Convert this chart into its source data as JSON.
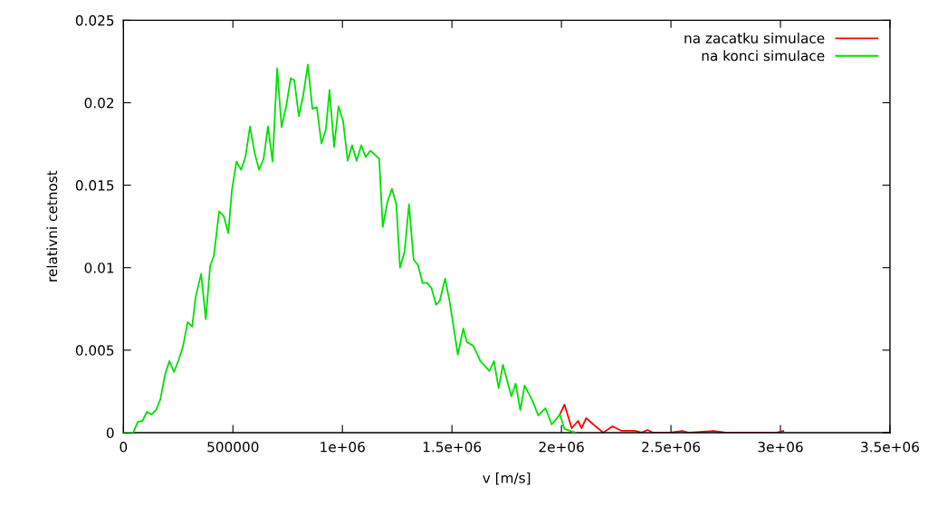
{
  "chart_data": {
    "type": "line",
    "xlabel": "v [m/s]",
    "ylabel": "relativni cetnost",
    "xlim": [
      0,
      3500000
    ],
    "ylim": [
      0,
      0.025
    ],
    "xticks": [
      0,
      500000,
      {
        "value": 1000000,
        "label": "1e+06"
      },
      {
        "value": 1500000,
        "label": "1.5e+06"
      },
      {
        "value": 2000000,
        "label": "2e+06"
      },
      {
        "value": 2500000,
        "label": "2.5e+06"
      },
      {
        "value": 3000000,
        "label": "3e+06"
      },
      {
        "value": 3500000,
        "label": "3.5e+06"
      }
    ],
    "yticks": [
      0,
      0.005,
      0.01,
      0.015,
      0.02,
      0.025
    ],
    "grid": false,
    "legend": "top right",
    "marker": "none",
    "line_style": "solid",
    "series": [
      {
        "name": "na zacatku simulace",
        "color": "#ff0000",
        "x": [
          1993000,
          2014000,
          2047000,
          2076000,
          2092000,
          2113000,
          2146000,
          2191000,
          2233000,
          2274000,
          2336000,
          2365000,
          2394000,
          2418000,
          2497000,
          2551000,
          2579000,
          2695000,
          2749000,
          2984000,
          3013000
        ],
        "values": [
          0.0011,
          0.0017,
          0.00027,
          0.00071,
          0.00027,
          0.00088,
          0.00049,
          0,
          0.00038,
          0.00011,
          0.00011,
          0,
          0.00016,
          0,
          0,
          0.0001,
          0,
          0.0001,
          0,
          0,
          0.0001
        ]
      },
      {
        "name": "na konci simulace",
        "color": "#00e000",
        "x": [
          0,
          45000,
          66000,
          87000,
          107000,
          128000,
          149000,
          169000,
          190000,
          210000,
          231000,
          252000,
          272000,
          293000,
          314000,
          330000,
          355000,
          376000,
          396000,
          413000,
          437000,
          458000,
          479000,
          495000,
          516000,
          537000,
          557000,
          578000,
          598000,
          619000,
          640000,
          660000,
          681000,
          702000,
          722000,
          743000,
          764000,
          780000,
          801000,
          821000,
          842000,
          863000,
          883000,
          904000,
          924000,
          941000,
          962000,
          982000,
          1003000,
          1024000,
          1044000,
          1065000,
          1086000,
          1106000,
          1127000,
          1147000,
          1168000,
          1184000,
          1205000,
          1226000,
          1246000,
          1263000,
          1284000,
          1304000,
          1325000,
          1345000,
          1366000,
          1387000,
          1407000,
          1428000,
          1444000,
          1469000,
          1490000,
          1527000,
          1552000,
          1568000,
          1597000,
          1630000,
          1671000,
          1692000,
          1713000,
          1733000,
          1771000,
          1791000,
          1812000,
          1832000,
          1870000,
          1894000,
          1927000,
          1956000,
          1993000,
          2014000,
          2064000
        ],
        "values": [
          0,
          0,
          0.00066,
          0.00071,
          0.00126,
          0.0011,
          0.00137,
          0.00203,
          0.00352,
          0.00434,
          0.00368,
          0.0044,
          0.00522,
          0.0067,
          0.00643,
          0.00824,
          0.00962,
          0.00687,
          0.01011,
          0.01071,
          0.01341,
          0.01313,
          0.01209,
          0.01467,
          0.01643,
          0.01593,
          0.0167,
          0.01857,
          0.01703,
          0.01593,
          0.01659,
          0.01857,
          0.01643,
          0.02209,
          0.01852,
          0.01978,
          0.02148,
          0.02137,
          0.01918,
          0.02044,
          0.02231,
          0.01962,
          0.01973,
          0.01753,
          0.01835,
          0.02077,
          0.01731,
          0.01978,
          0.0189,
          0.01648,
          0.01742,
          0.01648,
          0.01742,
          0.0167,
          0.01709,
          0.01687,
          0.01659,
          0.01247,
          0.01396,
          0.01478,
          0.01385,
          0.01,
          0.01099,
          0.01385,
          0.01049,
          0.01016,
          0.00907,
          0.00907,
          0.00874,
          0.00775,
          0.00797,
          0.00934,
          0.00791,
          0.00473,
          0.00632,
          0.00549,
          0.00527,
          0.00434,
          0.00374,
          0.00434,
          0.00269,
          0.00412,
          0.0022,
          0.00297,
          0.00137,
          0.00286,
          0.00187,
          0.00104,
          0.00148,
          0.00049,
          0.0011,
          0.00022,
          0
        ]
      }
    ]
  }
}
